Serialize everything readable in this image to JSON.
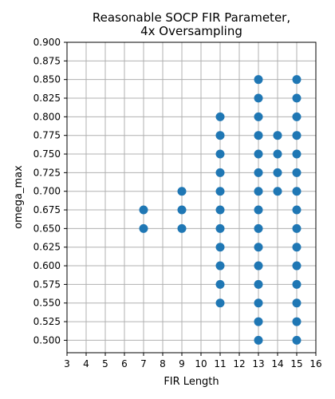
{
  "chart_data": {
    "type": "scatter",
    "title": [
      "Reasonable SOCP FIR Parameter,",
      "4x Oversampling"
    ],
    "xlabel": "FIR Length",
    "ylabel": "omega_max",
    "xlim": [
      3,
      16
    ],
    "ylim": [
      0.4833,
      0.9
    ],
    "xticks": [
      3,
      4,
      5,
      6,
      7,
      8,
      9,
      10,
      11,
      12,
      13,
      14,
      15,
      16
    ],
    "yticks": [
      0.5,
      0.525,
      0.55,
      0.575,
      0.6,
      0.625,
      0.65,
      0.675,
      0.7,
      0.725,
      0.75,
      0.775,
      0.8,
      0.825,
      0.85,
      0.875,
      0.9
    ],
    "grid": true,
    "marker_color": "#1f77b4",
    "points": [
      [
        7,
        0.65
      ],
      [
        7,
        0.675
      ],
      [
        9,
        0.65
      ],
      [
        9,
        0.675
      ],
      [
        9,
        0.7
      ],
      [
        11,
        0.55
      ],
      [
        11,
        0.575
      ],
      [
        11,
        0.6
      ],
      [
        11,
        0.625
      ],
      [
        11,
        0.65
      ],
      [
        11,
        0.675
      ],
      [
        11,
        0.7
      ],
      [
        11,
        0.725
      ],
      [
        11,
        0.75
      ],
      [
        11,
        0.775
      ],
      [
        11,
        0.8
      ],
      [
        13,
        0.5
      ],
      [
        13,
        0.525
      ],
      [
        13,
        0.55
      ],
      [
        13,
        0.575
      ],
      [
        13,
        0.6
      ],
      [
        13,
        0.625
      ],
      [
        13,
        0.65
      ],
      [
        13,
        0.675
      ],
      [
        13,
        0.7
      ],
      [
        13,
        0.725
      ],
      [
        13,
        0.75
      ],
      [
        13,
        0.775
      ],
      [
        13,
        0.8
      ],
      [
        13,
        0.825
      ],
      [
        13,
        0.85
      ],
      [
        14,
        0.7
      ],
      [
        14,
        0.725
      ],
      [
        14,
        0.75
      ],
      [
        14,
        0.775
      ],
      [
        15,
        0.5
      ],
      [
        15,
        0.525
      ],
      [
        15,
        0.55
      ],
      [
        15,
        0.575
      ],
      [
        15,
        0.6
      ],
      [
        15,
        0.625
      ],
      [
        15,
        0.65
      ],
      [
        15,
        0.675
      ],
      [
        15,
        0.7
      ],
      [
        15,
        0.725
      ],
      [
        15,
        0.75
      ],
      [
        15,
        0.775
      ],
      [
        15,
        0.8
      ],
      [
        15,
        0.825
      ],
      [
        15,
        0.85
      ]
    ]
  }
}
